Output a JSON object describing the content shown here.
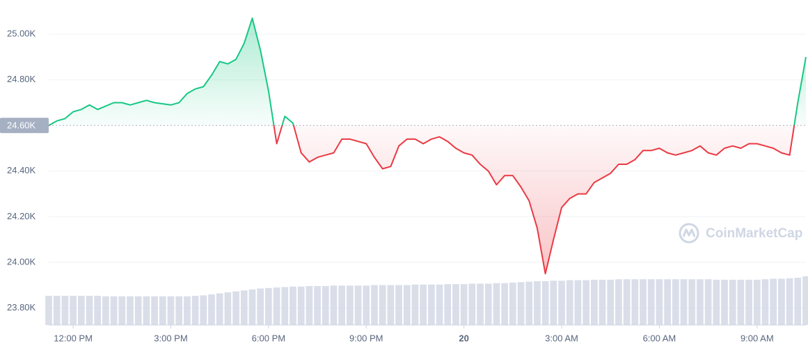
{
  "chart_data": {
    "type": "line",
    "categories": [
      null,
      null,
      null,
      "12:00 PM",
      null,
      null,
      null,
      null,
      null,
      null,
      null,
      null,
      null,
      null,
      null,
      "3:00 PM",
      null,
      null,
      null,
      null,
      null,
      null,
      null,
      null,
      null,
      null,
      null,
      "6:00 PM",
      null,
      null,
      null,
      null,
      null,
      null,
      null,
      null,
      null,
      null,
      null,
      "9:00 PM",
      null,
      null,
      null,
      null,
      null,
      null,
      null,
      null,
      null,
      null,
      null,
      "20",
      null,
      null,
      null,
      null,
      null,
      null,
      null,
      null,
      null,
      null,
      null,
      "3:00 AM",
      null,
      null,
      null,
      null,
      null,
      null,
      null,
      null,
      null,
      null,
      null,
      "6:00 AM",
      null,
      null,
      null,
      null,
      null,
      null,
      null,
      null,
      null,
      null,
      null,
      "9:00 AM",
      null,
      null,
      null,
      null,
      null,
      null
    ],
    "values": [
      24600,
      24620,
      24630,
      24660,
      24670,
      24690,
      24670,
      24685,
      24700,
      24700,
      24690,
      24700,
      24710,
      24700,
      24695,
      24690,
      24700,
      24740,
      24760,
      24770,
      24820,
      24880,
      24870,
      24890,
      24960,
      25070,
      24930,
      24750,
      24520,
      24640,
      24610,
      24480,
      24440,
      24460,
      24470,
      24480,
      24540,
      24540,
      24530,
      24520,
      24460,
      24410,
      24420,
      24510,
      24540,
      24540,
      24520,
      24540,
      24550,
      24530,
      24500,
      24480,
      24470,
      24430,
      24400,
      24340,
      24380,
      24380,
      24330,
      24270,
      24150,
      23950,
      24100,
      24240,
      24280,
      24300,
      24300,
      24350,
      24370,
      24390,
      24430,
      24430,
      24450,
      24490,
      24490,
      24500,
      24480,
      24470,
      24480,
      24490,
      24510,
      24480,
      24470,
      24500,
      24510,
      24500,
      24520,
      24520,
      24510,
      24500,
      24480,
      24470,
      24700,
      24900
    ],
    "volume": [
      60,
      60,
      60,
      60,
      60,
      60,
      60,
      59,
      59,
      59,
      59,
      59,
      59,
      59,
      59,
      59,
      59,
      59,
      60,
      61,
      63,
      65,
      67,
      69,
      71,
      73,
      75,
      76,
      77,
      78,
      79,
      79,
      80,
      80,
      80,
      81,
      81,
      81,
      81,
      81,
      82,
      82,
      82,
      82,
      82,
      83,
      83,
      83,
      83,
      84,
      84,
      84,
      85,
      85,
      85,
      86,
      86,
      87,
      88,
      89,
      90,
      90,
      91,
      91,
      92,
      92,
      92,
      93,
      93,
      93,
      94,
      94,
      94,
      94,
      94,
      94,
      94,
      94,
      94,
      94,
      94,
      94,
      93,
      93,
      93,
      93,
      93,
      93,
      94,
      95,
      95,
      96,
      97,
      100
    ],
    "y2lim": [
      0,
      100
    ],
    "up_color": "#16c784",
    "down_color": "#ea3943",
    "volume_color": "#cfd6e4",
    "ylim": [
      23725,
      25150
    ],
    "yticks": [
      {
        "value": 23800,
        "label": "23.80K"
      },
      {
        "value": 24000,
        "label": "24.00K"
      },
      {
        "value": 24200,
        "label": "24.20K"
      },
      {
        "value": 24400,
        "label": "24.40K"
      },
      {
        "value": 24800,
        "label": "24.80K"
      },
      {
        "value": 25000,
        "label": "25.00K"
      }
    ],
    "baseline": {
      "value": 24600,
      "label": "24.60K"
    },
    "grid": true,
    "watermark": "CoinMarketCap"
  }
}
